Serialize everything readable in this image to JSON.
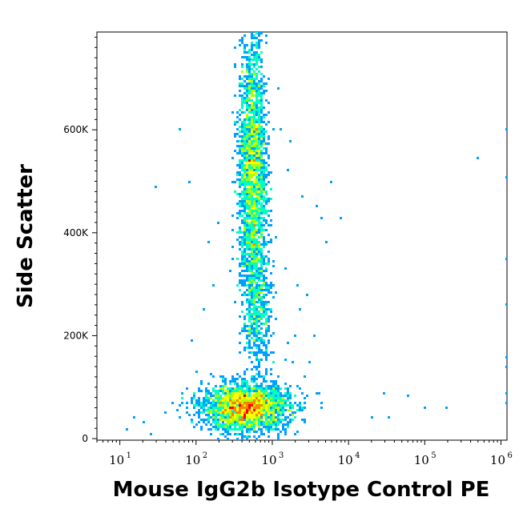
{
  "chart_data": {
    "type": "scatter",
    "title": "",
    "xlabel": "Mouse IgG2b Isotype Control PE",
    "ylabel": "Side Scatter",
    "x_scale": "log",
    "xlim": [
      5,
      1200000
    ],
    "ylim": [
      -3000,
      790000
    ],
    "x_ticks": [
      {
        "value": 10,
        "base": "10",
        "exp": "1"
      },
      {
        "value": 100,
        "base": "10",
        "exp": "2"
      },
      {
        "value": 1000,
        "base": "10",
        "exp": "3"
      },
      {
        "value": 10000,
        "base": "10",
        "exp": "4"
      },
      {
        "value": 100000,
        "base": "10",
        "exp": "5"
      },
      {
        "value": 1000000,
        "base": "10",
        "exp": "6"
      }
    ],
    "y_ticks": [
      {
        "value": 0,
        "label": "0"
      },
      {
        "value": 200000,
        "label": "200K"
      },
      {
        "value": 400000,
        "label": "400K"
      },
      {
        "value": 600000,
        "label": "600K"
      }
    ],
    "grid": false,
    "legend": "none",
    "density_colors": [
      "#0000ff",
      "#00a0ff",
      "#00ffc0",
      "#b0ff00",
      "#ffff00",
      "#ff8000",
      "#ff0000"
    ],
    "populations": [
      {
        "x_center": 450,
        "y_center": 60000,
        "x_spread_decades": 0.28,
        "y_spread": 22000,
        "count": 2600
      },
      {
        "x_center": 550,
        "y_center": 520000,
        "x_spread_decades": 0.09,
        "y_spread": 130000,
        "count": 2400
      },
      {
        "x_center": 650,
        "y_center": 250000,
        "x_spread_decades": 0.09,
        "y_spread": 70000,
        "count": 500
      }
    ],
    "sparse_points": [
      [
        60,
        600000
      ],
      [
        30,
        490000
      ],
      [
        1200,
        680000
      ],
      [
        1300,
        600000
      ],
      [
        2500,
        470000
      ],
      [
        3800,
        450000
      ],
      [
        4500,
        430000
      ],
      [
        6000,
        500000
      ],
      [
        2200,
        300000
      ],
      [
        2800,
        280000
      ],
      [
        3500,
        200000
      ],
      [
        5000,
        380000
      ],
      [
        1500,
        330000
      ],
      [
        1800,
        150000
      ],
      [
        2200,
        100000
      ],
      [
        4000,
        90000
      ],
      [
        30000,
        90000
      ],
      [
        60000,
        85000
      ],
      [
        20000,
        40000
      ],
      [
        35000,
        40000
      ],
      [
        100000,
        60000
      ],
      [
        200000,
        60000
      ],
      [
        500000,
        545000
      ],
      [
        1150000,
        600000
      ],
      [
        1150000,
        510000
      ],
      [
        1150000,
        350000
      ],
      [
        1150000,
        260000
      ],
      [
        1150000,
        160000
      ],
      [
        1150000,
        140000
      ],
      [
        1150000,
        90000
      ],
      [
        1150000,
        70000
      ],
      [
        12,
        20000
      ],
      [
        15,
        40000
      ],
      [
        20,
        30000
      ],
      [
        25,
        10000
      ],
      [
        40,
        50000
      ],
      [
        50,
        70000
      ],
      [
        80,
        500000
      ],
      [
        150,
        380000
      ],
      [
        200,
        420000
      ],
      [
        130,
        250000
      ],
      [
        170,
        300000
      ],
      [
        90,
        190000
      ],
      [
        2000,
        200000
      ],
      [
        3000,
        150000
      ],
      [
        1600,
        520000
      ],
      [
        1700,
        580000
      ],
      [
        2300,
        250000
      ],
      [
        2600,
        120000
      ],
      [
        1900,
        60000
      ],
      [
        1400,
        20000
      ],
      [
        8000,
        430000
      ]
    ]
  }
}
